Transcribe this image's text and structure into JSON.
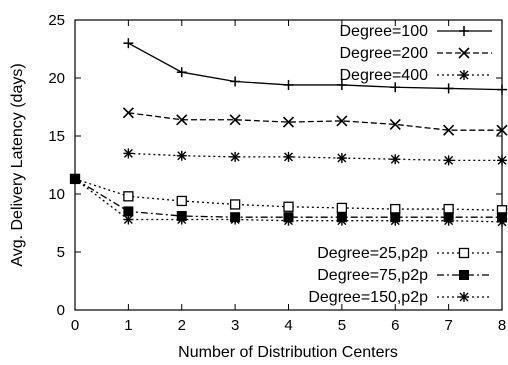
{
  "chart_data": {
    "type": "line",
    "xlabel": "Number of Distribution Centers",
    "ylabel": "Avg. Delivery Latency (days)",
    "xlim": [
      0,
      8
    ],
    "ylim": [
      0,
      25
    ],
    "x_ticks": [
      "0",
      "1",
      "2",
      "3",
      "4",
      "5",
      "6",
      "7",
      "8"
    ],
    "y_ticks": [
      "0",
      "5",
      "10",
      "15",
      "20",
      "25"
    ],
    "grid": false,
    "legend_top": "top-right",
    "legend_bottom": "bottom-right",
    "series": [
      {
        "name": "Degree=100",
        "marker": "plus",
        "dash": "solid",
        "legend": "top",
        "x": [
          1,
          2,
          3,
          4,
          5,
          6,
          7,
          8
        ],
        "y": [
          23.0,
          20.5,
          19.7,
          19.4,
          19.4,
          19.2,
          19.1,
          19.0
        ]
      },
      {
        "name": "Degree=200",
        "marker": "cross",
        "dash": "dashed",
        "legend": "top",
        "x": [
          1,
          2,
          3,
          4,
          5,
          6,
          7,
          8
        ],
        "y": [
          17.0,
          16.4,
          16.4,
          16.2,
          16.3,
          16.0,
          15.5,
          15.5
        ]
      },
      {
        "name": "Degree=400",
        "marker": "star",
        "dash": "dotted",
        "legend": "top",
        "x": [
          1,
          2,
          3,
          4,
          5,
          6,
          7,
          8
        ],
        "y": [
          13.5,
          13.3,
          13.2,
          13.2,
          13.1,
          13.0,
          12.9,
          12.9
        ]
      },
      {
        "name": "Degree=25,p2p",
        "marker": "open-square",
        "dash": "dotted",
        "legend": "bottom",
        "x": [
          0,
          1,
          2,
          3,
          4,
          5,
          6,
          7,
          8
        ],
        "y": [
          11.3,
          9.8,
          9.4,
          9.1,
          8.9,
          8.8,
          8.7,
          8.7,
          8.6
        ]
      },
      {
        "name": "Degree=75,p2p",
        "marker": "filled-square",
        "dash": "dashdot",
        "legend": "bottom",
        "x": [
          0,
          1,
          2,
          3,
          4,
          5,
          6,
          7,
          8
        ],
        "y": [
          11.3,
          8.5,
          8.1,
          8.0,
          8.0,
          8.0,
          8.0,
          8.0,
          8.0
        ]
      },
      {
        "name": "Degree=150,p2p",
        "marker": "star",
        "dash": "dotted",
        "legend": "bottom",
        "x": [
          0,
          1,
          2,
          3,
          4,
          5,
          6,
          7,
          8
        ],
        "y": [
          11.3,
          7.8,
          7.8,
          7.8,
          7.7,
          7.7,
          7.7,
          7.7,
          7.6
        ]
      }
    ]
  }
}
